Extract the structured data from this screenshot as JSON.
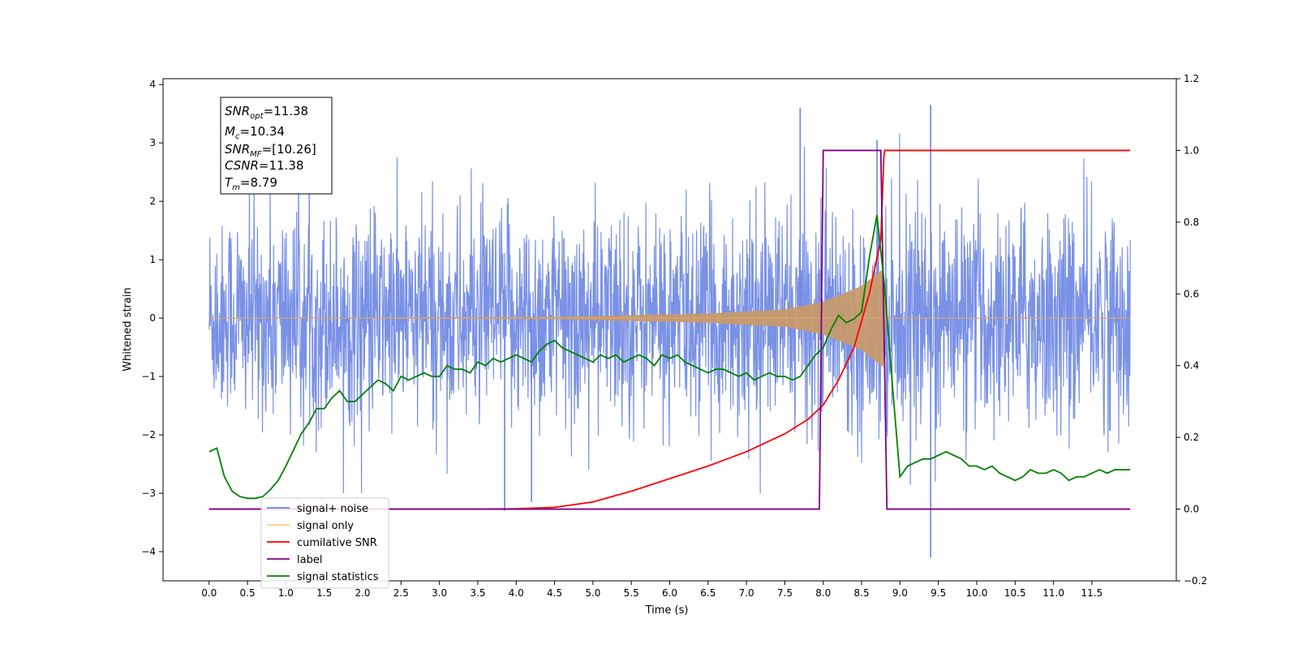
{
  "chart_data": {
    "type": "line",
    "xlabel": "Time (s)",
    "ylabel_left": "Whitened strain",
    "ylabel_right": "",
    "xlim": [
      -0.6,
      12.6
    ],
    "ylim_left": [
      -4.5,
      4.1
    ],
    "ylim_right": [
      -0.2,
      1.2
    ],
    "x_ticks": [
      "0.0",
      "0.5",
      "1.0",
      "1.5",
      "2.0",
      "2.5",
      "3.0",
      "3.5",
      "4.0",
      "4.5",
      "5.0",
      "5.5",
      "6.0",
      "6.5",
      "7.0",
      "7.5",
      "8.0",
      "8.5",
      "9.0",
      "9.5",
      "10.0",
      "10.5",
      "11.0",
      "11.5"
    ],
    "y_ticks_left": [
      "4",
      "3",
      "2",
      "1",
      "0",
      "−1",
      "−2",
      "−3",
      "−4"
    ],
    "y_ticks_right": [
      "1.2",
      "1.0",
      "0.8",
      "0.6",
      "0.4",
      "0.2",
      "0.0",
      "−0.2"
    ],
    "grid": false,
    "legend_position": "lower-left",
    "series": [
      {
        "name": "signal+ noise",
        "axis": "left",
        "color": "#6a85e3",
        "description_only": false,
        "x_range": [
          0,
          12
        ],
        "envelope_typical": [
          -1.3,
          1.4
        ],
        "peaks_max": [
          3.6,
          3.65
        ],
        "peaks_min": [
          -4.1,
          -3.3
        ]
      },
      {
        "name": "signal only",
        "axis": "left",
        "color": "#ffb347",
        "x_range": [
          0,
          12
        ],
        "envelope_points": [
          [
            0,
            0
          ],
          [
            4.5,
            0.02
          ],
          [
            6.5,
            0.08
          ],
          [
            7.5,
            0.15
          ],
          [
            8.0,
            0.28
          ],
          [
            8.5,
            0.55
          ],
          [
            8.79,
            0.85
          ],
          [
            8.82,
            0
          ]
        ]
      },
      {
        "name": "cumilative SNR",
        "axis": "right",
        "color": "#ff0000",
        "x": [
          0,
          3.5,
          4.0,
          4.5,
          5.0,
          5.5,
          6.0,
          6.5,
          7.0,
          7.5,
          7.8,
          8.0,
          8.2,
          8.4,
          8.6,
          8.75,
          8.79,
          8.8,
          12
        ],
        "y": [
          0,
          0,
          0.001,
          0.005,
          0.02,
          0.05,
          0.085,
          0.12,
          0.16,
          0.21,
          0.25,
          0.29,
          0.36,
          0.45,
          0.6,
          0.75,
          0.98,
          1.0,
          1.0
        ]
      },
      {
        "name": "label",
        "axis": "right",
        "color": "#800080",
        "x": [
          0,
          7.95,
          8.0,
          8.75,
          8.79,
          8.83,
          12
        ],
        "y": [
          0,
          0,
          1.0,
          1.0,
          0.52,
          0,
          0
        ]
      },
      {
        "name": "signal statistics",
        "axis": "right",
        "color": "#008000",
        "x": [
          0,
          0.1,
          0.2,
          0.3,
          0.4,
          0.5,
          0.6,
          0.7,
          0.8,
          0.9,
          1.0,
          1.1,
          1.2,
          1.3,
          1.4,
          1.5,
          1.6,
          1.7,
          1.8,
          1.9,
          2.0,
          2.1,
          2.2,
          2.3,
          2.4,
          2.5,
          2.6,
          2.7,
          2.8,
          2.9,
          3.0,
          3.1,
          3.2,
          3.3,
          3.4,
          3.5,
          3.6,
          3.7,
          3.8,
          3.9,
          4.0,
          4.1,
          4.2,
          4.3,
          4.4,
          4.5,
          4.6,
          4.7,
          4.8,
          4.9,
          5.0,
          5.1,
          5.2,
          5.3,
          5.4,
          5.5,
          5.6,
          5.7,
          5.8,
          5.9,
          6.0,
          6.1,
          6.2,
          6.3,
          6.4,
          6.5,
          6.6,
          6.7,
          6.8,
          6.9,
          7.0,
          7.1,
          7.2,
          7.3,
          7.4,
          7.5,
          7.6,
          7.7,
          7.8,
          7.9,
          8.0,
          8.1,
          8.2,
          8.3,
          8.4,
          8.5,
          8.6,
          8.7,
          8.8,
          8.9,
          9.0,
          9.1,
          9.2,
          9.3,
          9.4,
          9.5,
          9.6,
          9.7,
          9.8,
          9.9,
          10.0,
          10.1,
          10.2,
          10.3,
          10.4,
          10.5,
          10.6,
          10.7,
          10.8,
          10.9,
          11.0,
          11.1,
          11.2,
          11.3,
          11.4,
          11.5,
          11.6,
          11.7,
          11.8,
          11.9,
          12.0
        ],
        "y": [
          0.16,
          0.17,
          0.09,
          0.05,
          0.035,
          0.03,
          0.03,
          0.035,
          0.055,
          0.08,
          0.12,
          0.165,
          0.21,
          0.24,
          0.28,
          0.28,
          0.31,
          0.33,
          0.3,
          0.3,
          0.32,
          0.34,
          0.36,
          0.35,
          0.33,
          0.37,
          0.36,
          0.37,
          0.38,
          0.37,
          0.37,
          0.4,
          0.39,
          0.39,
          0.38,
          0.41,
          0.4,
          0.42,
          0.41,
          0.42,
          0.43,
          0.42,
          0.41,
          0.44,
          0.46,
          0.47,
          0.45,
          0.44,
          0.43,
          0.42,
          0.41,
          0.43,
          0.42,
          0.43,
          0.41,
          0.42,
          0.43,
          0.42,
          0.4,
          0.43,
          0.42,
          0.43,
          0.41,
          0.4,
          0.39,
          0.38,
          0.39,
          0.39,
          0.38,
          0.37,
          0.38,
          0.36,
          0.37,
          0.38,
          0.37,
          0.37,
          0.36,
          0.37,
          0.4,
          0.43,
          0.45,
          0.5,
          0.54,
          0.52,
          0.53,
          0.55,
          0.7,
          0.82,
          0.62,
          0.35,
          0.09,
          0.12,
          0.13,
          0.14,
          0.14,
          0.15,
          0.16,
          0.15,
          0.14,
          0.12,
          0.12,
          0.11,
          0.12,
          0.1,
          0.09,
          0.08,
          0.09,
          0.11,
          0.1,
          0.1,
          0.11,
          0.1,
          0.08,
          0.09,
          0.09,
          0.1,
          0.11,
          0.1,
          0.11,
          0.11,
          0.11
        ]
      }
    ],
    "annotation_box": {
      "lines": [
        {
          "base": "SNR",
          "sub": "opt",
          "value": "=11.38"
        },
        {
          "base": "M",
          "sub": "c",
          "value": "=10.34"
        },
        {
          "base": "SNR",
          "sub": "MF",
          "value": "=[10.26]"
        },
        {
          "base": "CSNR",
          "sub": "",
          "value": "=11.38"
        },
        {
          "base": "T",
          "sub": "m",
          "value": "=8.79"
        }
      ]
    },
    "legend_entries": [
      {
        "label": "signal+ noise",
        "color": "#6a85e3"
      },
      {
        "label": "signal only",
        "color": "#ffcf7f"
      },
      {
        "label": "cumilative SNR",
        "color": "#ff0000"
      },
      {
        "label": "label",
        "color": "#800080"
      },
      {
        "label": "signal statistics",
        "color": "#008000"
      }
    ]
  }
}
